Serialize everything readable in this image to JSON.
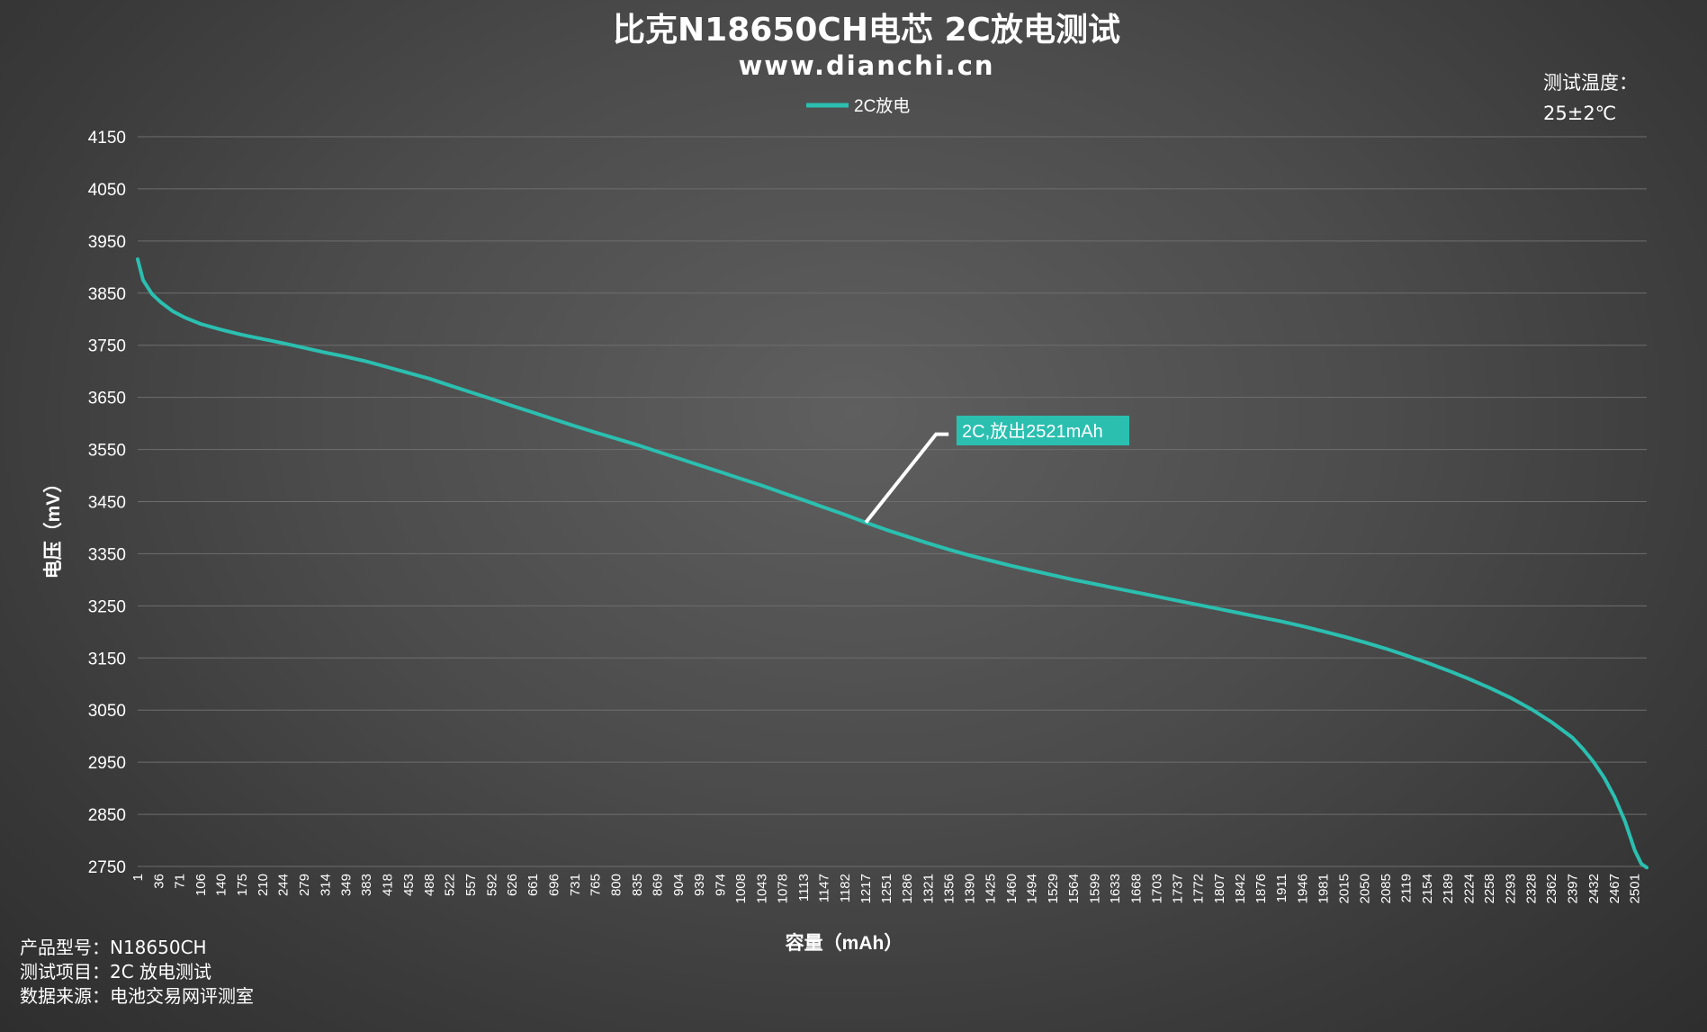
{
  "header": {
    "title": "比克N18650CH电芯 2C放电测试",
    "subtitle": "www.dianchi.cn"
  },
  "temperature": {
    "label": "测试温度：",
    "value": "25±2℃"
  },
  "footer": {
    "rows": [
      {
        "label": "产品型号：",
        "value": "N18650CH"
      },
      {
        "label": "测试项目：",
        "value": "2C 放电测试"
      },
      {
        "label": "数据来源：",
        "value": "电池交易网评测室"
      }
    ]
  },
  "colors": {
    "series": "#2bbfb0",
    "grid": "#6e6e6e",
    "annotation_bg": "#2bbfb0",
    "annotation_line": "#ffffff"
  },
  "chart_data": {
    "type": "line",
    "xlabel": "容量（mAh）",
    "ylabel": "电压（mV）",
    "xlim": [
      1,
      2521
    ],
    "ylim": [
      2750,
      4150
    ],
    "y_ticks": [
      4150,
      4050,
      3950,
      3850,
      3750,
      3650,
      3550,
      3450,
      3350,
      3250,
      3150,
      3050,
      2950,
      2850,
      2750
    ],
    "x_ticks": [
      "1",
      "36",
      "71",
      "106",
      "140",
      "175",
      "210",
      "244",
      "279",
      "314",
      "349",
      "383",
      "418",
      "453",
      "488",
      "522",
      "557",
      "592",
      "626",
      "661",
      "696",
      "731",
      "765",
      "800",
      "835",
      "869",
      "904",
      "939",
      "974",
      "1008",
      "1043",
      "1078",
      "1113",
      "1147",
      "1182",
      "1217",
      "1251",
      "1286",
      "1321",
      "1356",
      "1390",
      "1425",
      "1460",
      "1494",
      "1529",
      "1564",
      "1599",
      "1633",
      "1668",
      "1703",
      "1737",
      "1772",
      "1807",
      "1842",
      "1876",
      "1911",
      "1946",
      "1981",
      "2015",
      "2050",
      "2085",
      "2119",
      "2154",
      "2189",
      "2224",
      "2258",
      "2293",
      "2328",
      "2362",
      "2397",
      "2432",
      "2467",
      "2501"
    ],
    "grid": true,
    "legend": {
      "position": "top-center"
    },
    "series": [
      {
        "name": "2C放电",
        "x": [
          1,
          10,
          25,
          40,
          60,
          80,
          106,
          140,
          175,
          210,
          244,
          279,
          314,
          349,
          383,
          418,
          453,
          488,
          522,
          557,
          592,
          626,
          661,
          696,
          731,
          765,
          800,
          835,
          869,
          904,
          939,
          974,
          1008,
          1043,
          1078,
          1113,
          1147,
          1182,
          1217,
          1251,
          1286,
          1321,
          1356,
          1390,
          1425,
          1460,
          1494,
          1529,
          1564,
          1599,
          1633,
          1668,
          1703,
          1737,
          1772,
          1807,
          1842,
          1876,
          1911,
          1946,
          1981,
          2015,
          2050,
          2085,
          2119,
          2154,
          2189,
          2224,
          2258,
          2293,
          2328,
          2362,
          2397,
          2415,
          2432,
          2450,
          2467,
          2485,
          2501,
          2512,
          2521
        ],
        "y": [
          3915,
          3875,
          3848,
          3832,
          3815,
          3803,
          3791,
          3780,
          3770,
          3762,
          3754,
          3745,
          3736,
          3728,
          3719,
          3708,
          3697,
          3686,
          3673,
          3660,
          3647,
          3634,
          3621,
          3608,
          3595,
          3583,
          3571,
          3559,
          3546,
          3533,
          3520,
          3507,
          3494,
          3481,
          3467,
          3453,
          3439,
          3425,
          3410,
          3396,
          3383,
          3370,
          3358,
          3347,
          3337,
          3327,
          3318,
          3309,
          3300,
          3292,
          3284,
          3276,
          3268,
          3260,
          3252,
          3244,
          3236,
          3228,
          3220,
          3211,
          3201,
          3191,
          3180,
          3168,
          3155,
          3141,
          3126,
          3110,
          3093,
          3074,
          3052,
          3027,
          2997,
          2975,
          2951,
          2920,
          2884,
          2836,
          2781,
          2755,
          2748
        ]
      }
    ],
    "annotations": [
      {
        "text": "2C,放出2521mAh",
        "x": 1217,
        "y": 3410
      }
    ]
  }
}
